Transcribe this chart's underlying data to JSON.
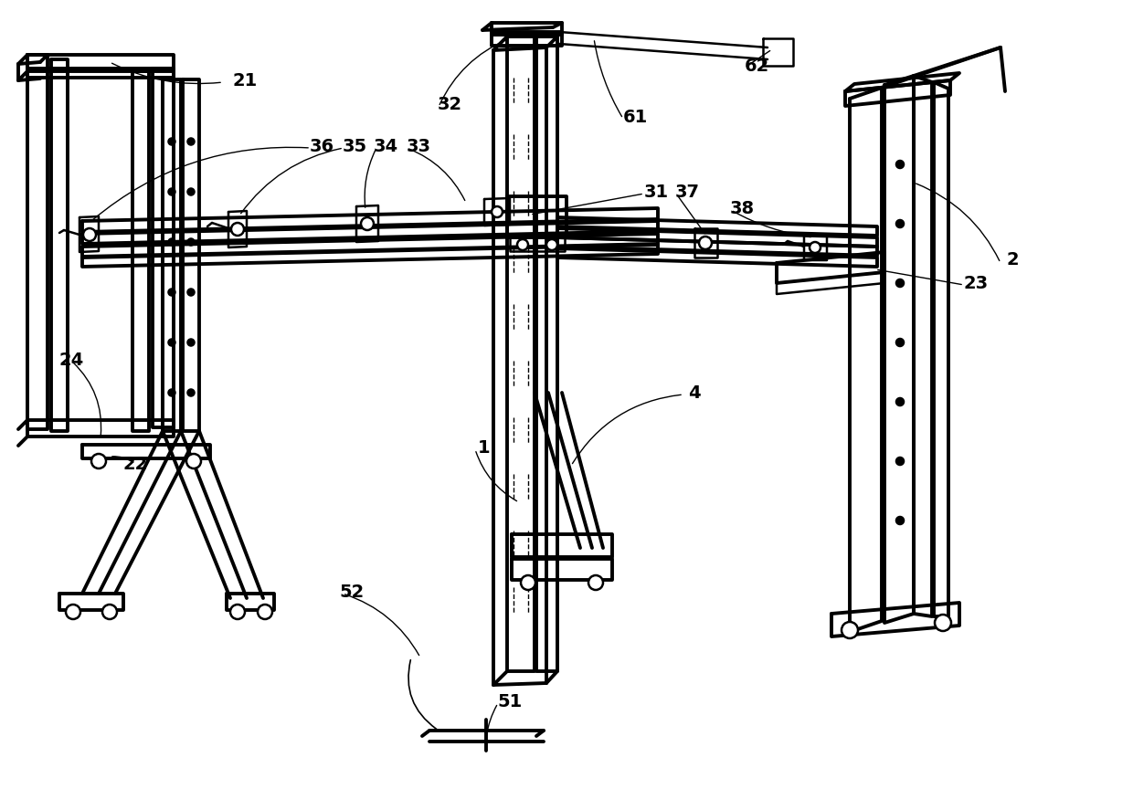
{
  "background_color": "#ffffff",
  "line_color": "#000000",
  "lw": 1.8,
  "tlw": 2.8,
  "labels": [
    [
      "1",
      530,
      490
    ],
    [
      "2",
      1108,
      285
    ],
    [
      "4",
      760,
      430
    ],
    [
      "21",
      268,
      88
    ],
    [
      "22",
      148,
      508
    ],
    [
      "23",
      1068,
      310
    ],
    [
      "24",
      78,
      395
    ],
    [
      "31",
      718,
      210
    ],
    [
      "32",
      492,
      115
    ],
    [
      "33",
      458,
      160
    ],
    [
      "34",
      422,
      160
    ],
    [
      "35",
      388,
      160
    ],
    [
      "36",
      352,
      160
    ],
    [
      "37",
      752,
      210
    ],
    [
      "38",
      812,
      228
    ],
    [
      "51",
      558,
      768
    ],
    [
      "52",
      385,
      648
    ],
    [
      "61",
      695,
      128
    ],
    [
      "62",
      828,
      72
    ]
  ]
}
